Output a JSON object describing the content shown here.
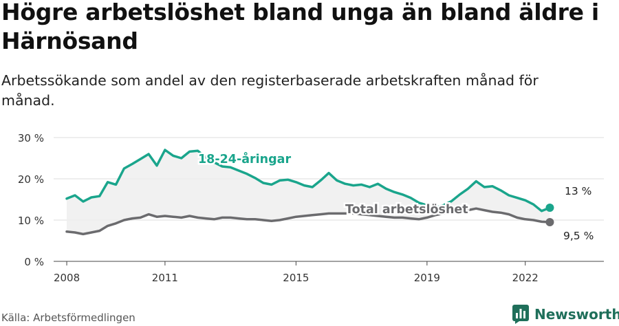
{
  "header": {
    "title": "Högre arbetslöshet bland unga än bland äldre i Härnösand",
    "subtitle": "Arbetssökande som andel av den registerbaserade arbetskraften månad för månad."
  },
  "footer": {
    "source": "Källa: Arbetsförmedlingen",
    "brand": "Newsworthy"
  },
  "colors": {
    "youth": "#1aa58c",
    "total": "#6b6b6e",
    "grid": "#dedede",
    "band": "#efefef",
    "brand": "#1f6f5a"
  },
  "icons": {
    "brand": "bar-chart-logo-icon"
  },
  "chart_data": {
    "type": "line",
    "title": "Högre arbetslöshet bland unga än bland äldre i Härnösand",
    "xlabel": "",
    "ylabel": "",
    "xlim": [
      2007.6,
      2024.4
    ],
    "ylim": [
      0,
      30
    ],
    "yticks": [
      0,
      10,
      20,
      30
    ],
    "ytick_labels": [
      "0 %",
      "10 %",
      "20 %",
      "30 %"
    ],
    "xticks": [
      2008,
      2011,
      2015,
      2019,
      2022
    ],
    "xtick_labels": [
      "2008",
      "2011",
      "2015",
      "2019",
      "2022"
    ],
    "grid": true,
    "legend": "inline",
    "series": [
      {
        "name": "18-24-åringar",
        "end_label": "13 %",
        "x": [
          2008.0,
          2008.25,
          2008.5,
          2008.75,
          2009.0,
          2009.25,
          2009.5,
          2009.75,
          2010.0,
          2010.25,
          2010.5,
          2010.75,
          2011.0,
          2011.25,
          2011.5,
          2011.75,
          2012.0,
          2012.25,
          2012.5,
          2012.75,
          2013.0,
          2013.25,
          2013.5,
          2013.75,
          2014.0,
          2014.25,
          2014.5,
          2014.75,
          2015.0,
          2015.25,
          2015.5,
          2015.75,
          2016.0,
          2016.25,
          2016.5,
          2016.75,
          2017.0,
          2017.25,
          2017.5,
          2017.75,
          2018.0,
          2018.25,
          2018.5,
          2018.75,
          2019.0,
          2019.25,
          2019.5,
          2019.75,
          2020.0,
          2020.25,
          2020.5,
          2020.75,
          2021.0,
          2021.25,
          2021.5,
          2021.75,
          2022.0,
          2022.25,
          2022.5,
          2022.75
        ],
        "values": [
          15.2,
          16.0,
          14.5,
          15.5,
          15.8,
          19.2,
          18.6,
          22.5,
          23.6,
          24.8,
          26.0,
          23.2,
          27.0,
          25.6,
          25.0,
          26.6,
          26.8,
          25.2,
          24.0,
          23.0,
          22.8,
          22.0,
          21.2,
          20.2,
          19.0,
          18.6,
          19.6,
          19.8,
          19.2,
          18.4,
          18.0,
          19.6,
          21.4,
          19.6,
          18.8,
          18.4,
          18.6,
          18.0,
          18.8,
          17.6,
          16.8,
          16.2,
          15.4,
          14.2,
          13.6,
          13.0,
          13.6,
          14.6,
          16.2,
          17.6,
          19.4,
          18.0,
          18.2,
          17.2,
          16.0,
          15.4,
          14.8,
          13.8,
          12.2,
          13.0
        ]
      },
      {
        "name": "Total arbetslöshet",
        "end_label": "9,5 %",
        "x": [
          2008.0,
          2008.25,
          2008.5,
          2008.75,
          2009.0,
          2009.25,
          2009.5,
          2009.75,
          2010.0,
          2010.25,
          2010.5,
          2010.75,
          2011.0,
          2011.25,
          2011.5,
          2011.75,
          2012.0,
          2012.25,
          2012.5,
          2012.75,
          2013.0,
          2013.25,
          2013.5,
          2013.75,
          2014.0,
          2014.25,
          2014.5,
          2014.75,
          2015.0,
          2015.25,
          2015.5,
          2015.75,
          2016.0,
          2016.25,
          2016.5,
          2016.75,
          2017.0,
          2017.25,
          2017.5,
          2017.75,
          2018.0,
          2018.25,
          2018.5,
          2018.75,
          2019.0,
          2019.25,
          2019.5,
          2019.75,
          2020.0,
          2020.25,
          2020.5,
          2020.75,
          2021.0,
          2021.25,
          2021.5,
          2021.75,
          2022.0,
          2022.25,
          2022.5,
          2022.75
        ],
        "values": [
          7.2,
          7.0,
          6.6,
          7.0,
          7.4,
          8.6,
          9.2,
          10.0,
          10.4,
          10.6,
          11.4,
          10.8,
          11.0,
          10.8,
          10.6,
          11.0,
          10.6,
          10.4,
          10.2,
          10.6,
          10.6,
          10.4,
          10.2,
          10.2,
          10.0,
          9.8,
          10.0,
          10.4,
          10.8,
          11.0,
          11.2,
          11.4,
          11.6,
          11.6,
          11.6,
          11.6,
          11.4,
          11.2,
          11.0,
          10.8,
          10.6,
          10.6,
          10.4,
          10.2,
          10.6,
          11.2,
          11.6,
          11.8,
          12.0,
          12.4,
          12.8,
          12.4,
          12.0,
          11.8,
          11.4,
          10.6,
          10.2,
          10.0,
          9.6,
          9.5
        ]
      }
    ]
  }
}
